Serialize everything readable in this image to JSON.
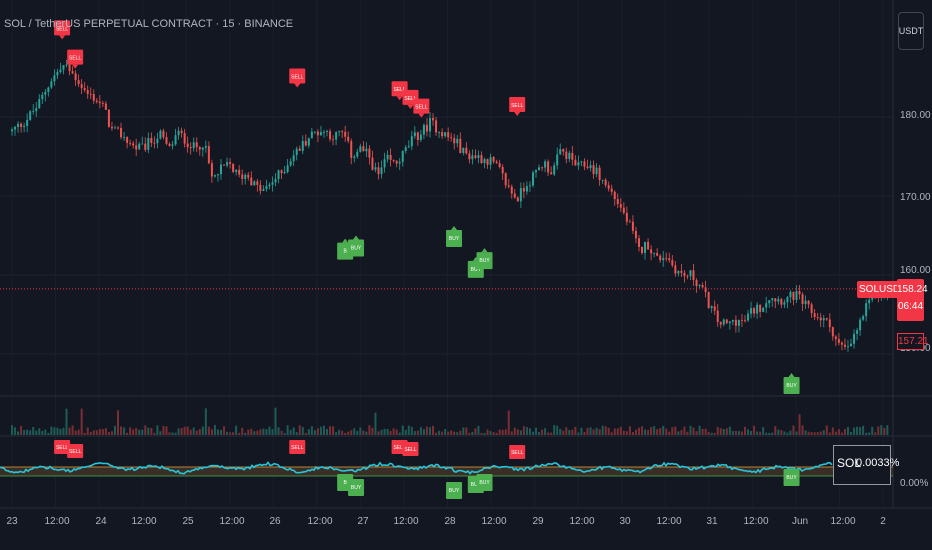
{
  "symbol_title": "SOL / TetherUS PERPETUAL CONTRACT · 15 · BINANCE",
  "currency_button": "USDT",
  "price_axis": [
    "180.00",
    "170.00",
    "160.00",
    "150.00"
  ],
  "current_price": {
    "symbol": "SOLUSDT.P",
    "price": "158.24",
    "countdown": "06:44"
  },
  "low_price_label": "157.21",
  "indicator": {
    "symbol": "SOL",
    "value": "0.0033%",
    "axis_label": "0.00%"
  },
  "time_axis": [
    "23",
    "12:00",
    "24",
    "12:00",
    "25",
    "12:00",
    "26",
    "12:00",
    "27",
    "12:00",
    "28",
    "12:00",
    "29",
    "12:00",
    "30",
    "12:00",
    "31",
    "12:00",
    "Jun",
    "12:00",
    "2"
  ],
  "signals": {
    "sell_label": "SELL",
    "buy_label": "BUY",
    "buy_short_label": "B"
  },
  "colors": {
    "background": "#131722",
    "up": "#26a69a",
    "down": "#ef5350",
    "sell": "#f23645",
    "buy": "#4caf50",
    "indicator_line": "#26c6da",
    "price_line": "#f23645"
  },
  "chart_data": {
    "type": "candlestick",
    "title": "SOL / TetherUS PERPETUAL CONTRACT · 15 · BINANCE",
    "x_labels": [
      "23",
      "12:00",
      "24",
      "12:00",
      "25",
      "12:00",
      "26",
      "12:00",
      "27",
      "12:00",
      "28",
      "12:00",
      "29",
      "12:00",
      "30",
      "12:00",
      "31",
      "12:00",
      "Jun",
      "12:00",
      "2"
    ],
    "y_ticks": [
      180,
      170,
      160,
      150
    ],
    "ylim": [
      147,
      189
    ],
    "xlim": [
      0,
      20.6
    ],
    "close_path": [
      [
        0,
        178.2
      ],
      [
        0.3,
        179.5
      ],
      [
        0.6,
        181.5
      ],
      [
        0.9,
        184.8
      ],
      [
        1.2,
        186.5
      ],
      [
        1.5,
        184.8
      ],
      [
        1.7,
        183.0
      ],
      [
        1.9,
        182.4
      ],
      [
        2.1,
        181.2
      ],
      [
        2.3,
        178.2
      ],
      [
        2.5,
        177.8
      ],
      [
        2.8,
        176.2
      ],
      [
        3.0,
        176.0
      ],
      [
        3.2,
        177.0
      ],
      [
        3.4,
        177.8
      ],
      [
        3.6,
        175.8
      ],
      [
        3.8,
        178.0
      ],
      [
        4.0,
        177.0
      ],
      [
        4.2,
        176.0
      ],
      [
        4.4,
        176.9
      ],
      [
        4.6,
        172.0
      ],
      [
        4.8,
        173.3
      ],
      [
        5.0,
        174.0
      ],
      [
        5.2,
        172.4
      ],
      [
        5.4,
        172.8
      ],
      [
        5.6,
        171.1
      ],
      [
        5.8,
        170.6
      ],
      [
        6.0,
        172.0
      ],
      [
        6.2,
        173.0
      ],
      [
        6.4,
        174.8
      ],
      [
        6.6,
        176.0
      ],
      [
        6.8,
        177.4
      ],
      [
        7.0,
        178.2
      ],
      [
        7.2,
        178.2
      ],
      [
        7.4,
        177.5
      ],
      [
        7.6,
        178.0
      ],
      [
        7.8,
        175.1
      ],
      [
        8.0,
        176.0
      ],
      [
        8.2,
        175.0
      ],
      [
        8.4,
        172.4
      ],
      [
        8.6,
        174.6
      ],
      [
        8.8,
        174.0
      ],
      [
        9.0,
        175.4
      ],
      [
        9.2,
        177.2
      ],
      [
        9.4,
        178.0
      ],
      [
        9.6,
        179.3
      ],
      [
        9.8,
        178.5
      ],
      [
        10.0,
        177.5
      ],
      [
        10.2,
        176.8
      ],
      [
        10.4,
        175.3
      ],
      [
        10.6,
        175.1
      ],
      [
        10.8,
        174.8
      ],
      [
        11.0,
        174.4
      ],
      [
        11.2,
        173.1
      ],
      [
        11.4,
        171.0
      ],
      [
        11.6,
        169.6
      ],
      [
        11.8,
        171.5
      ],
      [
        12.0,
        172.6
      ],
      [
        12.2,
        174.3
      ],
      [
        12.4,
        173.0
      ],
      [
        12.6,
        175.7
      ],
      [
        12.8,
        174.9
      ],
      [
        13.0,
        173.6
      ],
      [
        13.2,
        174.0
      ],
      [
        13.4,
        173.2
      ],
      [
        13.6,
        171.6
      ],
      [
        13.8,
        170.2
      ],
      [
        14.0,
        168.3
      ],
      [
        14.2,
        166.0
      ],
      [
        14.4,
        163.0
      ],
      [
        14.6,
        164.0
      ],
      [
        14.8,
        162.0
      ],
      [
        15.0,
        162.6
      ],
      [
        15.2,
        161.0
      ],
      [
        15.4,
        159.9
      ],
      [
        15.6,
        160.0
      ],
      [
        15.8,
        158.6
      ],
      [
        16.0,
        156.4
      ],
      [
        16.2,
        154.2
      ],
      [
        16.4,
        153.6
      ],
      [
        16.6,
        154.3
      ],
      [
        16.8,
        154.0
      ],
      [
        17.0,
        155.5
      ],
      [
        17.2,
        156.0
      ],
      [
        17.4,
        157.4
      ],
      [
        17.6,
        156.9
      ],
      [
        17.8,
        157.0
      ],
      [
        18.0,
        157.5
      ],
      [
        18.2,
        156.2
      ],
      [
        18.4,
        155.0
      ],
      [
        18.6,
        154.5
      ],
      [
        18.8,
        153.4
      ],
      [
        19.0,
        151.0
      ],
      [
        19.2,
        150.5
      ],
      [
        19.4,
        153.0
      ],
      [
        19.6,
        155.6
      ],
      [
        19.8,
        157.6
      ],
      [
        20.0,
        157.4
      ],
      [
        20.1,
        158.24
      ]
    ],
    "current_price": 158.24,
    "sell_signals": [
      [
        1.15,
        189.7
      ],
      [
        1.45,
        186.0
      ],
      [
        6.55,
        183.6
      ],
      [
        8.9,
        182.0
      ],
      [
        9.15,
        180.9
      ],
      [
        9.4,
        179.8
      ],
      [
        11.6,
        180.0
      ]
    ],
    "buy_signals": [
      [
        7.65,
        164.6
      ],
      [
        7.9,
        165.0
      ],
      [
        10.15,
        166.2
      ],
      [
        10.65,
        162.3
      ],
      [
        10.85,
        163.4
      ],
      [
        17.9,
        147.6
      ]
    ],
    "oscillator": {
      "name": "SOL",
      "last_value": "0.0033%",
      "zero_label": "0.00%"
    }
  }
}
